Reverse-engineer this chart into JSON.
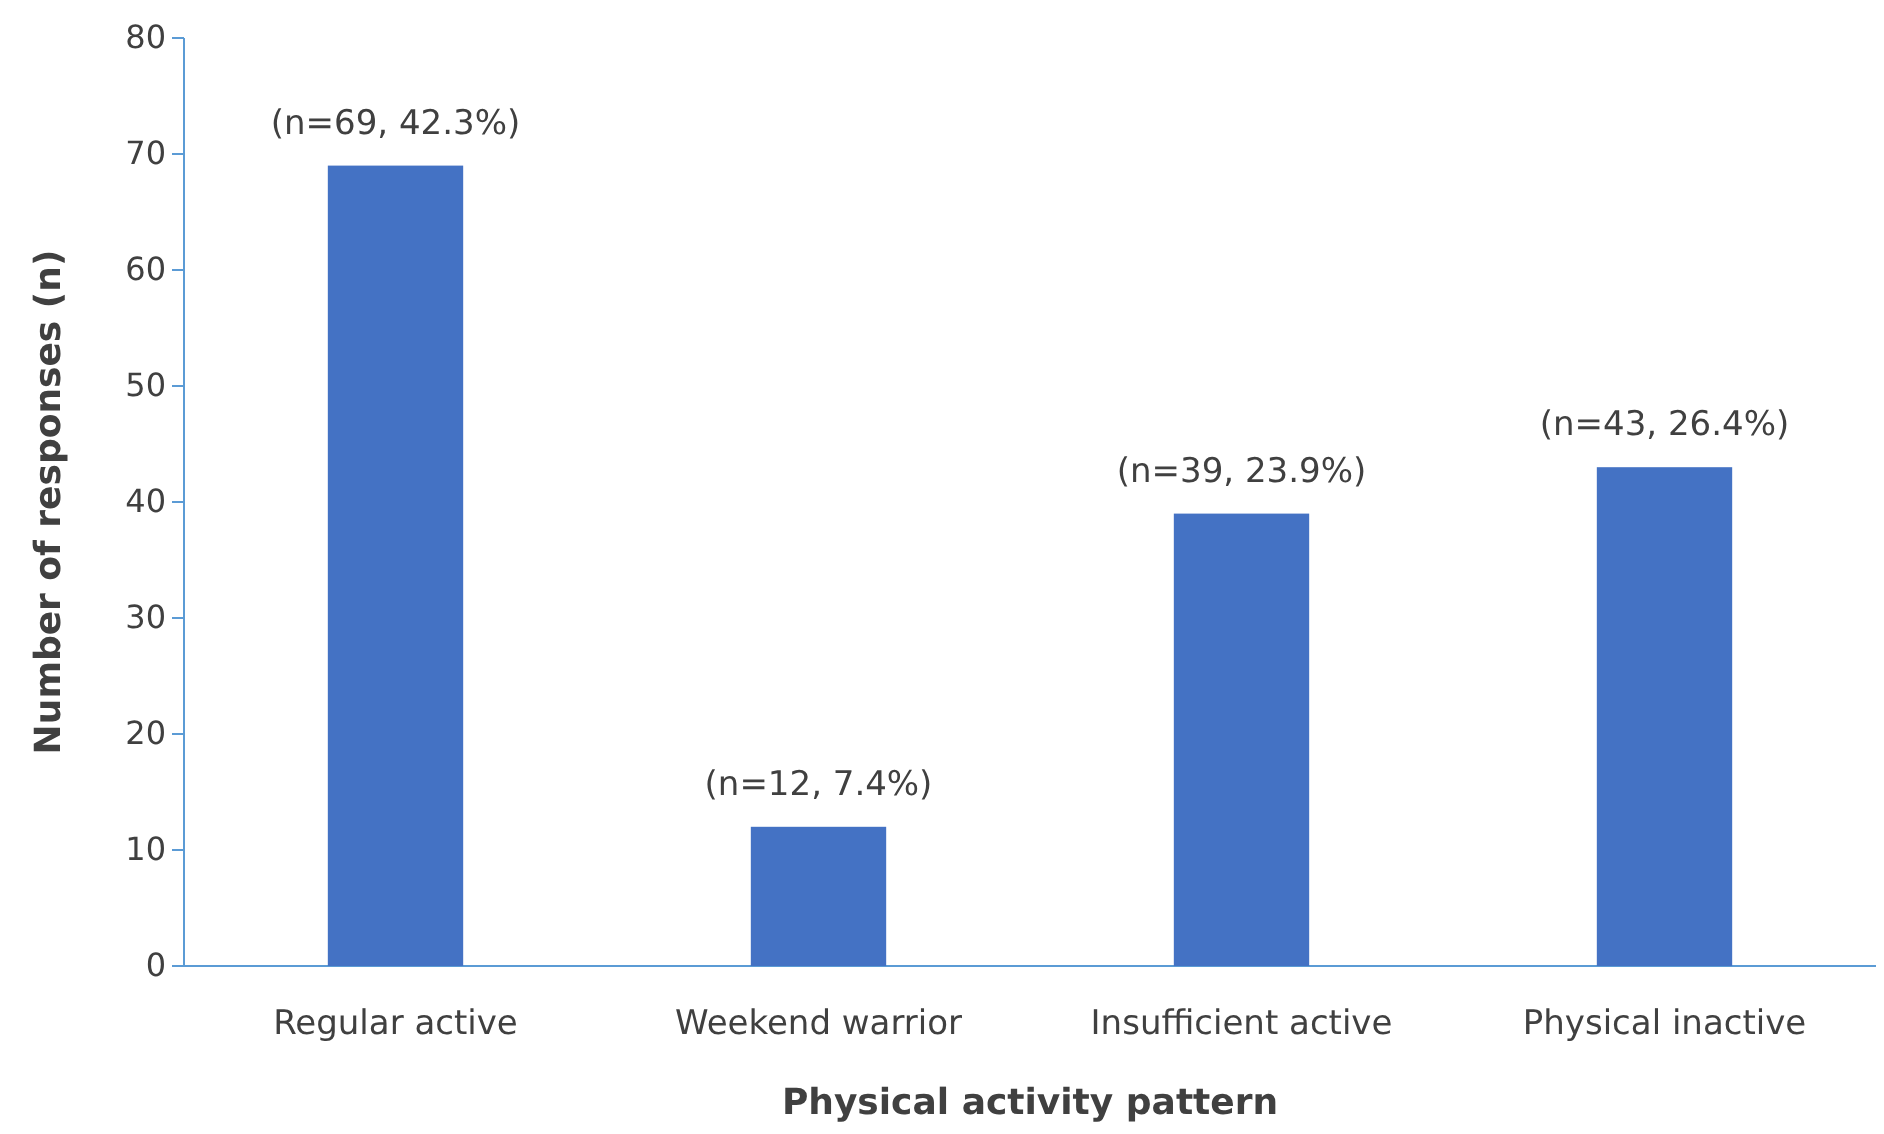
{
  "chart_data": {
    "type": "bar",
    "xlabel": "Physical activity pattern",
    "ylabel": "Number of responses (n)",
    "categories": [
      "Regular active",
      "Weekend warrior",
      "Insufficient active",
      "Physical inactive"
    ],
    "values": [
      69,
      12,
      39,
      43
    ],
    "value_labels": [
      "(n=69, 42.3%)",
      "(n=12, 7.4%)",
      "(n=39, 23.9%)",
      "(n=43, 26.4%)"
    ],
    "color": "#4472c4",
    "ylim": [
      0,
      80
    ],
    "yticks": [
      0,
      10,
      20,
      30,
      40,
      50,
      60,
      70,
      80
    ],
    "grid": false,
    "legend": false
  }
}
